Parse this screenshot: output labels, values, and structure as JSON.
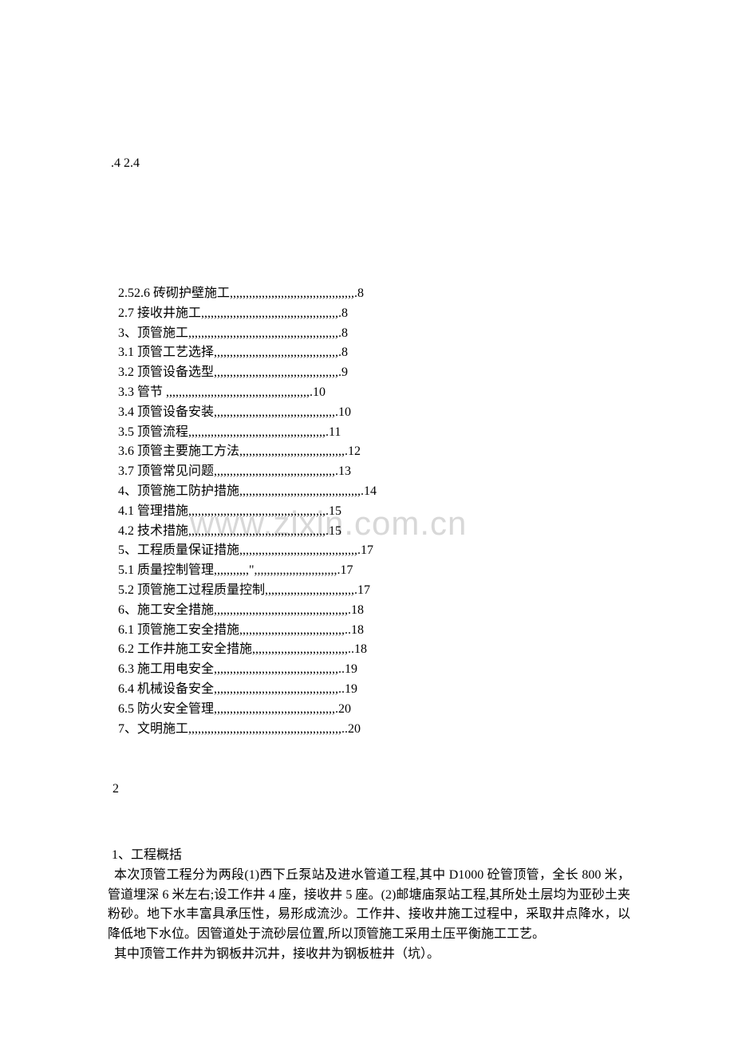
{
  "header": {
    "text": ".4 2.4"
  },
  "toc": {
    "lines": [
      "2.52.6 砖砌护壁施工,,,,,,,,,,,,,,,,,,,,,,,,,,,,,,,,,,,,,,,.8",
      "2.7 接收井施工,,,,,,,,,,,,,,,,,,,,,,,,,,,,,,,,,,,,,,,,,,,.8",
      "3、顶管施工,,,,,,,,,,,,,,,,,,,,,,,,,,,,,,,,,,,,,,,,,,,,,,,.8",
      "3.1 顶管工艺选择,,,,,,,,,,,,,,,,,,,,,,,,,,,,,,,,,,,,,,,.8",
      "3.2 顶管设备选型,,,,,,,,,,,,,,,,,,,,,,,,,,,,,,,,,,,,,,,.9",
      "3.3 管节  ,,,,,,,,,,,,,,,,,,,,,,,,,,,,,,,,,,,,,,,,,,,,,.10",
      "3.4 顶管设备安装,,,,,,,,,,,,,,,,,,,,,,,,,,,,,,,,,,,,,,.10",
      "3.5 顶管流程,,,,,,,,,,,,,,,,,,,,,,,,,,,,,,,,,,,,,,,,,,,.11",
      "3.6 顶管主要施工方法,,,,,,,,,,,,,,,,,,,,,,,,,,,,,,,,,.12",
      "3.7 顶管常见问题,,,,,,,,,,,,,,,,,,,,,,,,,,,,,,,,,,,,,,.13",
      "4、顶管施工防护措施,,,,,,,,,,,,,,,,,,,,,,,,,,,,,,,,,,,,,,.14",
      "4.1 管理措施,,,,,,,,,,,,,,,,,,,,,,,,,,,,,,,,,,,,,,,,,,,.15",
      "4.2 技术措施,,,,,,,,,,,,,,,,,,,,,,,,,,,,,,,,,,,,,,,,,,,.15",
      "5、工程质量保证措施,,,,,,,,,,,,,,,,,,,,,,,,,,,,,,,,,,,,,.17",
      "5.1 质量控制管理,,,,,,,,,,,\",,,,,,,,,,,,,,,,,,,,,,,,,,.17",
      "5.2 顶管施工过程质量控制,,,,,,,,,,,,,,,,,,,,,,,,,,,,.17",
      "6、施工安全措施,,,,,,,,,,,,,,,,,,,,,,,,,,,,,,,,,,,,,,,,,,.18",
      "6.1 顶管施工安全措施,,,,,,,,,,,,,,,,,,,,,,,,,,,,,,,,,..18",
      "6.2 工作井施工安全措施,,,,,,,,,,,,,,,,,,,,,,,,,,,,,,..18",
      "6.3 施工用电安全,,,,,,,,,,,,,,,,,,,,,,,,,,,,,,,,,,,,,,,..19",
      "6.4 机械设备安全,,,,,,,,,,,,,,,,,,,,,,,,,,,,,,,,,,,,,,,..19",
      "6.5 防火安全管理,,,,,,,,,,,,,,,,,,,,,,,,,,,,,,,,,,,,,,.20",
      "7、文明施工,,,,,,,,,,,,,,,,,,,,,,,,,,,,,,,,,,,,,,,,,,,,,,,,..20"
    ]
  },
  "watermark": {
    "text": "www.zixin.com.cn"
  },
  "pageNumber": {
    "text": "2"
  },
  "body": {
    "title": "1、工程概括",
    "paragraph1": " 本次顶管工程分为两段(1)西下丘泵站及进水管道工程,其中 D1000 砼管顶管，全长 800 米，管道埋深 6 米左右;设工作井 4 座，接收井 5 座。(2)邮塘庙泵站工程,其所处土层均为亚砂土夹粉砂。地下水丰富具承压性，易形成流沙。工作井、接收井施工过程中，采取井点降水，以降低地下水位。因管道处于流砂层位置,所以顶管施工采用土压平衡施工工艺。",
    "paragraph2": " 其中顶管工作井为钢板井沉井，接收井为钢板桩井（坑）。"
  }
}
